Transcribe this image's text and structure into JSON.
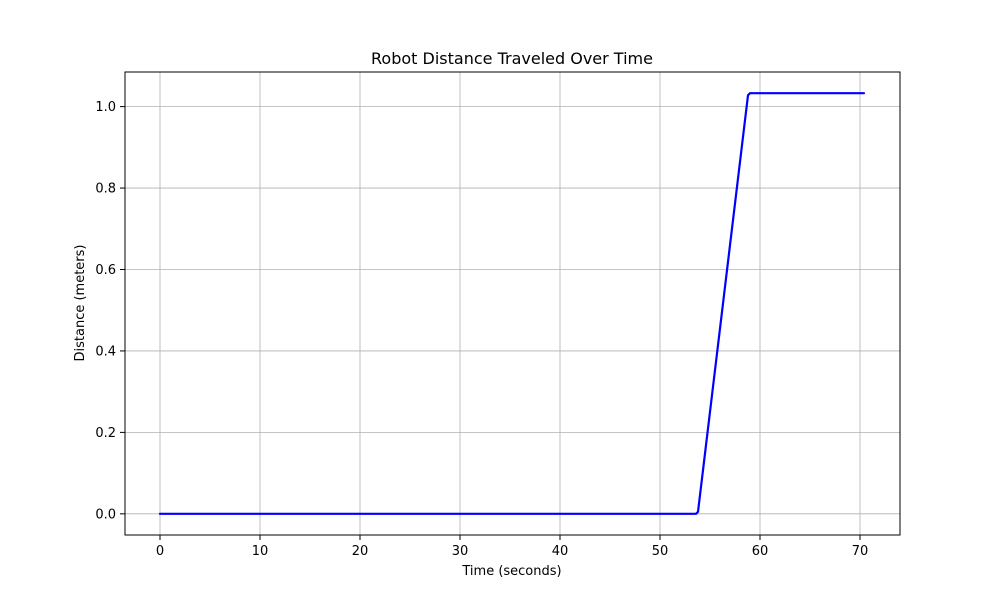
{
  "chart_data": {
    "type": "line",
    "title": "Robot Distance Traveled Over Time",
    "xlabel": "Time (seconds)",
    "ylabel": "Distance (meters)",
    "xlim": [
      -3.5,
      74
    ],
    "ylim": [
      -0.052,
      1.085
    ],
    "xticks": [
      0,
      10,
      20,
      30,
      40,
      50,
      60,
      70
    ],
    "yticks": [
      0.0,
      0.2,
      0.4,
      0.6,
      0.8,
      1.0
    ],
    "xtick_labels": [
      "0",
      "10",
      "20",
      "30",
      "40",
      "50",
      "60",
      "70"
    ],
    "ytick_labels": [
      "0.0",
      "0.2",
      "0.4",
      "0.6",
      "0.8",
      "1.0"
    ],
    "grid": true,
    "series": [
      {
        "color": "#0000ff",
        "x": [
          0,
          53.6,
          53.8,
          58.8,
          59.0,
          70.4
        ],
        "y": [
          0.0,
          0.0,
          0.005,
          1.028,
          1.033,
          1.033
        ]
      }
    ]
  }
}
